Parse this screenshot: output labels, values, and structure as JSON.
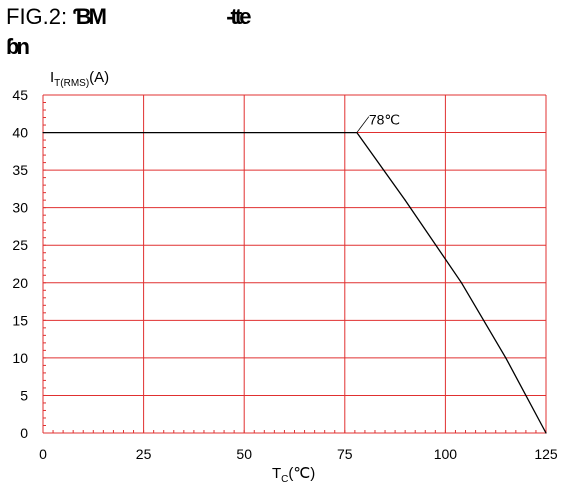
{
  "title": {
    "line1_prefix": "FIG.2:",
    "line1_glyphs_a": "ƁM",
    "line1_glyphs_b": "-tte",
    "line2_glyphs": "ɓn"
  },
  "chart_data": {
    "type": "line",
    "ylabel": {
      "main": "I",
      "sub": "T(RMS)",
      "suffix": "(A)"
    },
    "xlabel": {
      "main": "T",
      "sub": "C",
      "suffix": "(℃)"
    },
    "xlim": [
      0,
      125
    ],
    "ylim": [
      0,
      45
    ],
    "x_ticks": [
      0,
      25,
      50,
      75,
      100,
      125
    ],
    "y_ticks": [
      0,
      5,
      10,
      15,
      20,
      25,
      30,
      35,
      40,
      45
    ],
    "grid": true,
    "colors": {
      "grid": "#e03030",
      "axis": "#e03030",
      "line": "#000000"
    },
    "series": [
      {
        "x": [
          0,
          78,
          90,
          104,
          115,
          125
        ],
        "y": [
          40,
          40,
          31,
          20,
          10,
          0
        ]
      }
    ],
    "annotations": [
      {
        "text": "78℃",
        "x": 78,
        "y": 40
      }
    ]
  }
}
